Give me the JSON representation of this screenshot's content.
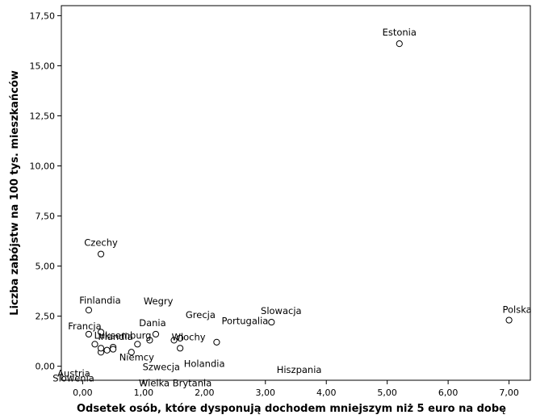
{
  "chart_data": {
    "type": "scatter",
    "title": "",
    "xlabel": "Odsetek osób, które dysponują dochodem mniejszym niż 5 euro na dobę",
    "ylabel": "Liczba zabójstw na 100 tys. mieszkańców",
    "xlim": [
      -0.35,
      7.35
    ],
    "ylim": [
      -0.7,
      18.0
    ],
    "x_ticks": [
      0,
      1,
      2,
      3,
      4,
      5,
      6,
      7
    ],
    "x_tick_labels": [
      "0,00",
      "1,00",
      "2,00",
      "3,00",
      "4,00",
      "5,00",
      "6,00",
      "7,00"
    ],
    "y_ticks": [
      0,
      2.5,
      5,
      7.5,
      10,
      12.5,
      15,
      17.5
    ],
    "y_tick_labels": [
      "0,00",
      "2,50",
      "5,00",
      "7,50",
      "10,00",
      "12,50",
      "15,00",
      "17,50"
    ],
    "grid": false,
    "legend": "none",
    "points": [
      {
        "x": 5.2,
        "y": 16.1,
        "label": "Estonia"
      },
      {
        "x": 0.3,
        "y": 5.6,
        "label": "Czechy"
      },
      {
        "x": 7.0,
        "y": 2.3,
        "label": "Polska"
      },
      {
        "x": 3.1,
        "y": 2.2,
        "label": "Slowacja"
      },
      {
        "x": 0.1,
        "y": 2.8,
        "label": "Finlandia"
      },
      {
        "x": 0.3,
        "y": 1.7,
        "label": "Luksemburg"
      },
      {
        "x": 0.1,
        "y": 1.6,
        "label": "Francja"
      },
      {
        "x": 0.5,
        "y": 0.95,
        "label": "Irlandia"
      },
      {
        "x": 1.2,
        "y": 1.6,
        "label": "Dania"
      },
      {
        "x": 1.6,
        "y": 1.4,
        "label": "Wegry"
      },
      {
        "x": 2.2,
        "y": 1.2,
        "label": "Grecja"
      },
      {
        "x": 1.5,
        "y": 1.3,
        "label": "Wlochy"
      },
      {
        "x": 1.1,
        "y": 1.3,
        "label": "Portugalia"
      },
      {
        "x": 0.2,
        "y": 1.1,
        "label": "Austria"
      },
      {
        "x": 0.3,
        "y": 0.7,
        "label": "Slowenia"
      },
      {
        "x": 0.9,
        "y": 1.1,
        "label": "Niemcy"
      },
      {
        "x": 0.8,
        "y": 0.7,
        "label": "Szwecja"
      },
      {
        "x": 1.6,
        "y": 0.9,
        "label": "Holandia"
      },
      {
        "x": 0.4,
        "y": 0.8,
        "label": "Hiszpania"
      },
      {
        "x": 0.5,
        "y": 0.85,
        "label": "Wielka Brytania"
      },
      {
        "x": 0.3,
        "y": 0.9,
        "label": ""
      }
    ]
  }
}
